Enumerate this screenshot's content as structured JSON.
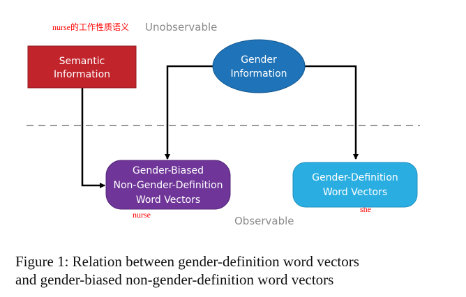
{
  "annotations": {
    "top": "nurse的工作性质语义",
    "nurse": "nurse",
    "she": "she"
  },
  "regions": {
    "unobservable": "Unobservable",
    "observable": "Observable"
  },
  "nodes": {
    "semantic": {
      "lines": [
        "Semantic",
        "Information"
      ],
      "color": "#c1242b"
    },
    "gender_info": {
      "lines": [
        "Gender",
        "Information"
      ],
      "color": "#1f73b8"
    },
    "biased": {
      "lines": [
        "Gender-Biased",
        "Non-Gender-Definition",
        "Word Vectors"
      ],
      "color": "#6f3598"
    },
    "definition": {
      "lines": [
        "Gender-Definition",
        "Word Vectors"
      ],
      "color": "#2aaee2"
    }
  },
  "caption": {
    "line1": "Figure 1: Relation between gender-definition word vectors",
    "line2": "and gender-biased non-gender-definition word vectors"
  }
}
